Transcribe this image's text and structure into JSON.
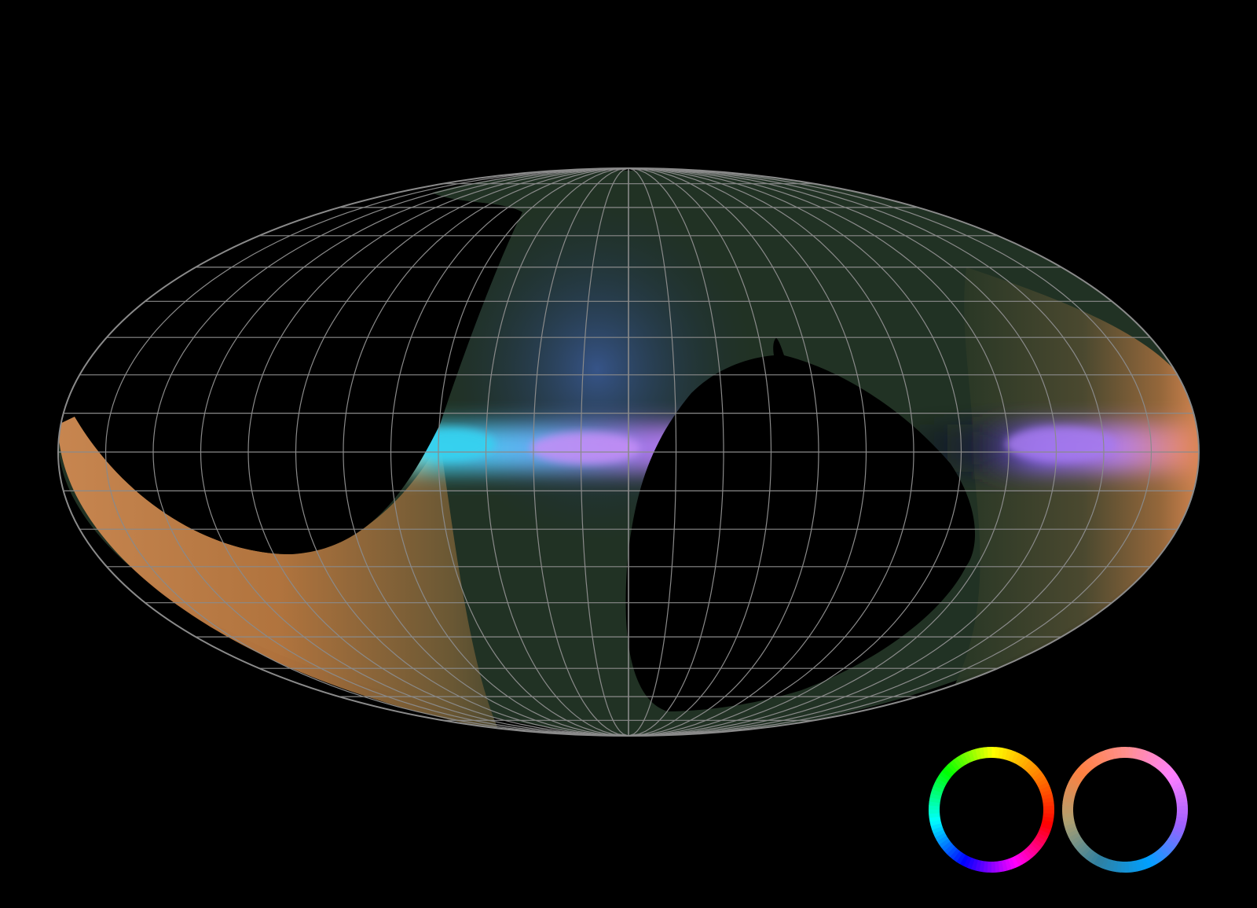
{
  "figure": {
    "projection": "mollweide",
    "background_color": "#000000",
    "graticule_color": "#8a8a8a",
    "graticule": {
      "meridian_spacing_deg": 15,
      "parallel_spacing_deg": 10
    },
    "coverage_colors": {
      "high_latitude_band": "#243524",
      "west_edge": "#c9804a",
      "galactic_plane_center": "#a774e6",
      "galactic_plane_cyan": "#3ad0ee",
      "galactic_plane_east": "#8f6ae8",
      "east_edge": "#e18d55",
      "pale_highlight": "#dff0b8"
    },
    "legend_rings": [
      {
        "name": "hue-wheel-full",
        "colors": [
          "#ffff00",
          "#ff8000",
          "#ff0000",
          "#ff00ff",
          "#0000ff",
          "#00ffff",
          "#00ff00",
          "#ffff00"
        ]
      },
      {
        "name": "hue-wheel-warm-cool",
        "colors": [
          "#ff9090",
          "#ff80ff",
          "#a060ff",
          "#00a0ff",
          "#3080a0",
          "#b0a070",
          "#ff8040",
          "#ff9090"
        ]
      }
    ]
  }
}
